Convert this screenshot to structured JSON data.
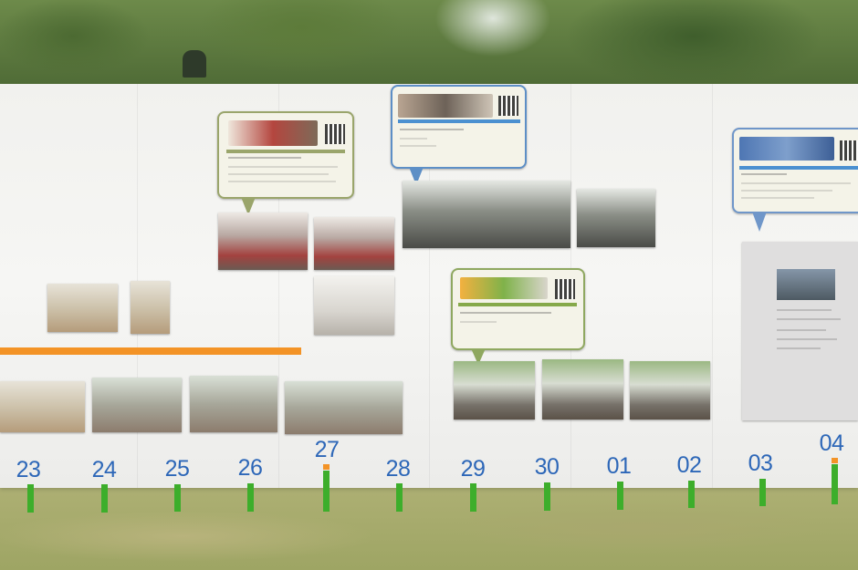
{
  "scene": {
    "description_free": true,
    "colors": {
      "day_label": "#2d67b8",
      "green_tape": "#3dae2b",
      "orange_tape": "#f39326"
    }
  },
  "timeline": {
    "days": [
      {
        "label": "23",
        "tick": "green"
      },
      {
        "label": "24",
        "tick": "green"
      },
      {
        "label": "25",
        "tick": "green"
      },
      {
        "label": "26",
        "tick": "green"
      },
      {
        "label": "27",
        "tick": "green-orange"
      },
      {
        "label": "28",
        "tick": "green"
      },
      {
        "label": "29",
        "tick": "green"
      },
      {
        "label": "30",
        "tick": "green"
      },
      {
        "label": "01",
        "tick": "green"
      },
      {
        "label": "02",
        "tick": "green"
      },
      {
        "label": "03",
        "tick": "green"
      },
      {
        "label": "04",
        "tick": "green-orange"
      }
    ]
  },
  "bubbles": [
    {
      "name": "event-bubble-1",
      "border": "#9aa56b",
      "strip": "#9aa56b"
    },
    {
      "name": "event-bubble-2",
      "border": "#5d8fc6",
      "strip": "#4b90d0"
    },
    {
      "name": "event-bubble-3",
      "border": "#8fa860",
      "strip": "#86a94a"
    },
    {
      "name": "event-bubble-4",
      "border": "#6f96c9",
      "strip": "#4b90d0"
    }
  ]
}
